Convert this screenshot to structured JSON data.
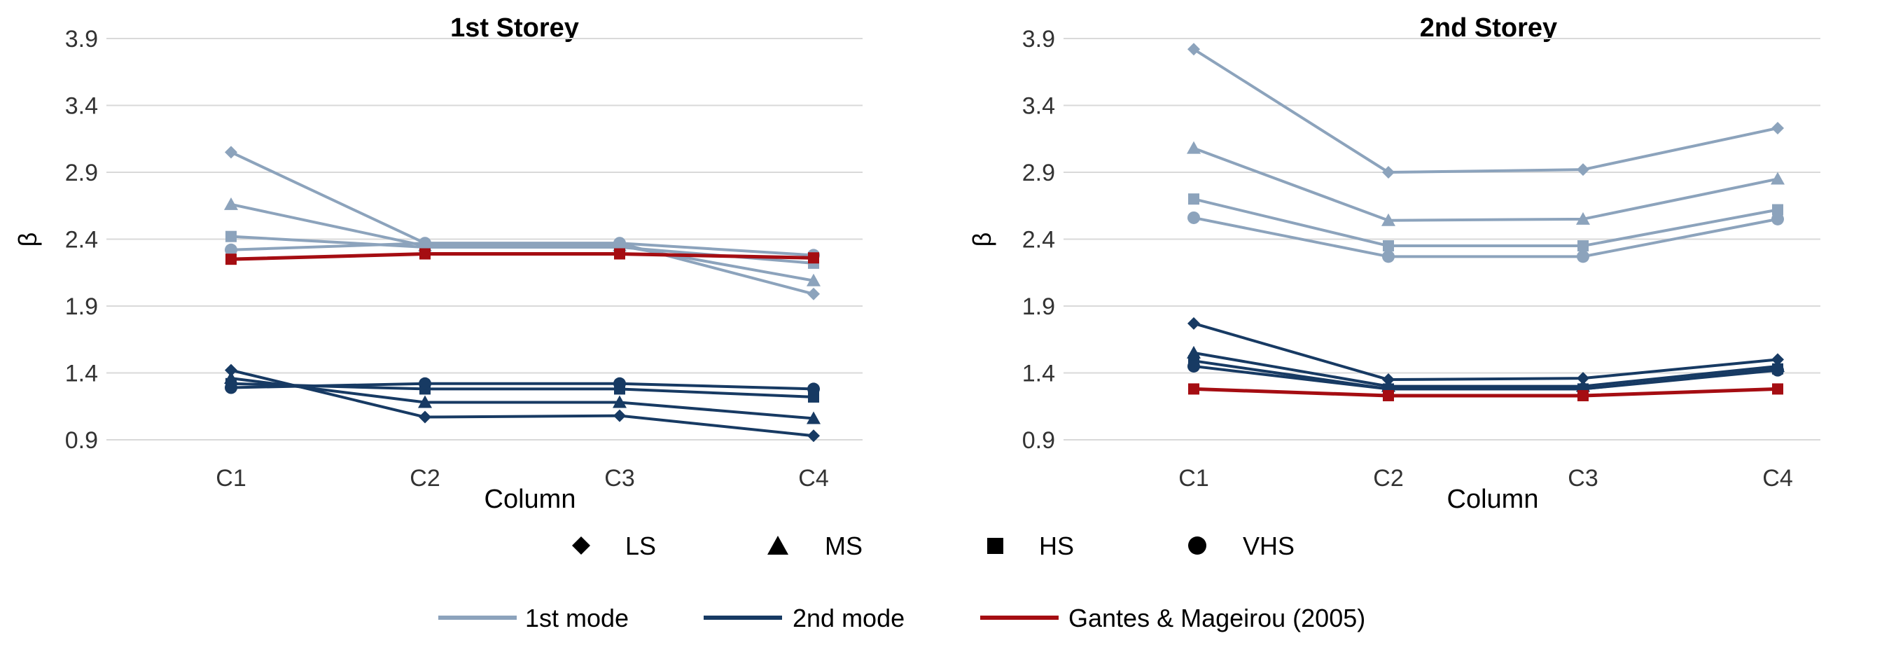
{
  "colors": {
    "mode1": "#8ca3bc",
    "mode2": "#173a63",
    "gantes": "#a50d12",
    "grid": "#d9d9d9",
    "text": "#333333"
  },
  "legend": {
    "shapes": [
      {
        "label": "LS",
        "marker": "diamond"
      },
      {
        "label": "MS",
        "marker": "triangle"
      },
      {
        "label": "HS",
        "marker": "square"
      },
      {
        "label": "VHS",
        "marker": "circle"
      }
    ],
    "lines": [
      {
        "label": "1st mode",
        "color_key": "mode1"
      },
      {
        "label": "2nd mode",
        "color_key": "mode2"
      },
      {
        "label": "Gantes & Mageirou (2005)",
        "color_key": "gantes"
      }
    ]
  },
  "chart_data": [
    {
      "type": "line",
      "title": "1st Storey",
      "xlabel": "Column",
      "ylabel": "β",
      "categories": [
        "C1",
        "C2",
        "C3",
        "C4"
      ],
      "ylim": [
        0.9,
        3.9
      ],
      "yticks": [
        "0.9",
        "1.4",
        "1.9",
        "2.4",
        "2.9",
        "3.4",
        "3.9"
      ],
      "grid": true,
      "series": [
        {
          "name": "LS 1st mode",
          "group": "mode1",
          "marker": "diamond",
          "values": [
            3.05,
            2.37,
            2.37,
            1.99
          ]
        },
        {
          "name": "MS 1st mode",
          "group": "mode1",
          "marker": "triangle",
          "values": [
            2.66,
            2.35,
            2.35,
            2.09
          ]
        },
        {
          "name": "HS 1st mode",
          "group": "mode1",
          "marker": "square",
          "values": [
            2.42,
            2.34,
            2.34,
            2.22
          ]
        },
        {
          "name": "VHS 1st mode",
          "group": "mode1",
          "marker": "circle",
          "values": [
            2.32,
            2.37,
            2.37,
            2.28
          ]
        },
        {
          "name": "Gantes & Mageirou (2005)",
          "group": "gantes",
          "marker": "square",
          "values": [
            2.25,
            2.29,
            2.29,
            2.26
          ]
        },
        {
          "name": "LS 2nd mode",
          "group": "mode2",
          "marker": "diamond",
          "values": [
            1.42,
            1.07,
            1.08,
            0.93
          ]
        },
        {
          "name": "MS 2nd mode",
          "group": "mode2",
          "marker": "triangle",
          "values": [
            1.36,
            1.18,
            1.18,
            1.06
          ]
        },
        {
          "name": "HS 2nd mode",
          "group": "mode2",
          "marker": "square",
          "values": [
            1.32,
            1.28,
            1.28,
            1.22
          ]
        },
        {
          "name": "VHS 2nd mode",
          "group": "mode2",
          "marker": "circle",
          "values": [
            1.29,
            1.32,
            1.32,
            1.28
          ]
        }
      ]
    },
    {
      "type": "line",
      "title": "2nd Storey",
      "xlabel": "Column",
      "ylabel": "β",
      "categories": [
        "C1",
        "C2",
        "C3",
        "C4"
      ],
      "ylim": [
        0.9,
        3.9
      ],
      "yticks": [
        "0.9",
        "1.4",
        "1.9",
        "2.4",
        "2.9",
        "3.4",
        "3.9"
      ],
      "grid": true,
      "series": [
        {
          "name": "LS 1st mode",
          "group": "mode1",
          "marker": "diamond",
          "values": [
            3.82,
            2.9,
            2.92,
            3.23
          ]
        },
        {
          "name": "MS 1st mode",
          "group": "mode1",
          "marker": "triangle",
          "values": [
            3.08,
            2.54,
            2.55,
            2.85
          ]
        },
        {
          "name": "HS 1st mode",
          "group": "mode1",
          "marker": "square",
          "values": [
            2.7,
            2.35,
            2.35,
            2.62
          ]
        },
        {
          "name": "VHS 1st mode",
          "group": "mode1",
          "marker": "circle",
          "values": [
            2.56,
            2.27,
            2.27,
            2.55
          ]
        },
        {
          "name": "LS 2nd mode",
          "group": "mode2",
          "marker": "diamond",
          "values": [
            1.77,
            1.35,
            1.36,
            1.5
          ]
        },
        {
          "name": "MS 2nd mode",
          "group": "mode2",
          "marker": "triangle",
          "values": [
            1.55,
            1.3,
            1.3,
            1.45
          ]
        },
        {
          "name": "HS 2nd mode",
          "group": "mode2",
          "marker": "square",
          "values": [
            1.49,
            1.28,
            1.28,
            1.43
          ]
        },
        {
          "name": "VHS 2nd mode",
          "group": "mode2",
          "marker": "circle",
          "values": [
            1.45,
            1.28,
            1.28,
            1.42
          ]
        },
        {
          "name": "Gantes & Mageirou (2005)",
          "group": "gantes",
          "marker": "square",
          "values": [
            1.28,
            1.23,
            1.23,
            1.28
          ]
        }
      ]
    }
  ]
}
